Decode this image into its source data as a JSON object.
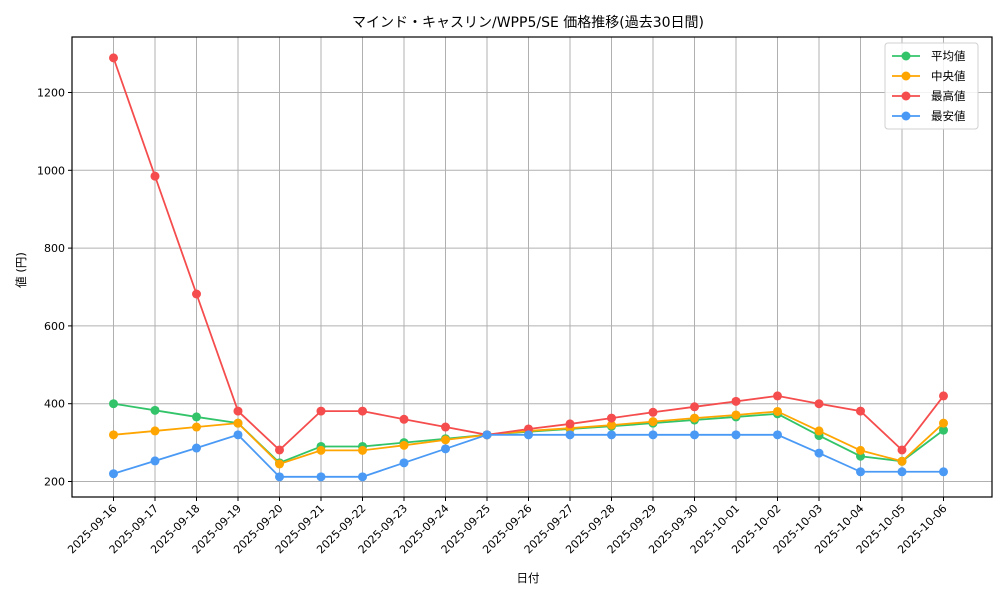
{
  "chart_data": {
    "type": "line",
    "title": "マインド・キャスリン/WPP5/SE 価格推移(過去30日間)",
    "xlabel": "日付",
    "ylabel": "値 (円)",
    "ylim": [
      155,
      1335
    ],
    "yticks": [
      200,
      400,
      600,
      800,
      1000,
      1200
    ],
    "grid": true,
    "legend_position": "upper right",
    "categories": [
      "2025-09-16",
      "2025-09-17",
      "2025-09-18",
      "2025-09-19",
      "2025-09-20",
      "2025-09-21",
      "2025-09-22",
      "2025-09-23",
      "2025-09-24",
      "2025-09-25",
      "2025-09-26",
      "2025-09-27",
      "2025-09-28",
      "2025-09-29",
      "2025-09-30",
      "2025-10-01",
      "2025-10-02",
      "2025-10-03",
      "2025-10-04",
      "2025-10-05",
      "2025-10-06"
    ],
    "series": [
      {
        "name": "平均値",
        "color": "#33c46a",
        "values": [
          400,
          383,
          366,
          350,
          248,
          290,
          290,
          300,
          310,
          320,
          328,
          335,
          342,
          350,
          358,
          366,
          374,
          318,
          265,
          252,
          332
        ]
      },
      {
        "name": "中央値",
        "color": "#ffa500",
        "values": [
          320,
          330,
          340,
          350,
          245,
          280,
          280,
          293,
          307,
          320,
          330,
          337,
          345,
          354,
          363,
          371,
          380,
          330,
          280,
          252,
          350
        ]
      },
      {
        "name": "最高値",
        "color": "#f54d4d",
        "values": [
          1289,
          985,
          682,
          381,
          281,
          381,
          381,
          360,
          340,
          320,
          335,
          348,
          363,
          378,
          392,
          406,
          420,
          400,
          381,
          281,
          420
        ]
      },
      {
        "name": "最安値",
        "color": "#4a9af5",
        "values": [
          220,
          253,
          286,
          320,
          212,
          212,
          212,
          248,
          284,
          320,
          320,
          320,
          320,
          320,
          320,
          320,
          320,
          273,
          225,
          225,
          225
        ]
      }
    ]
  }
}
